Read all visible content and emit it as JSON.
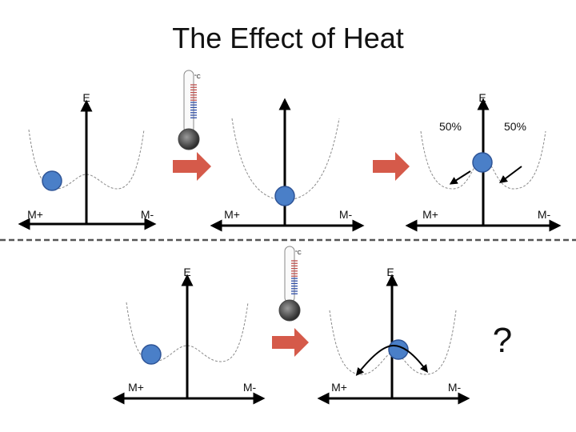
{
  "title": "The Effect of Heat",
  "colors": {
    "ball_fill": "#4a7fc8",
    "ball_stroke": "#2f5597",
    "arrow_fill": "#d55a4a",
    "curve": "#8a8a8a",
    "axis": "#000000",
    "divider": "#555555",
    "thermo_cold_ticks": "#2f4ea8",
    "thermo_hot_ticks": "#c0504d"
  },
  "thermometer": {
    "unit": "°C"
  },
  "panels": [
    {
      "e_label": "E",
      "left_label": "M+",
      "right_label": "M-"
    },
    {
      "e_label": "",
      "left_label": "M+",
      "right_label": "M-"
    },
    {
      "e_label": "E",
      "left_label": "M+",
      "right_label": "M-",
      "pct_left": "50%",
      "pct_right": "50%"
    },
    {
      "e_label": "E",
      "left_label": "M+",
      "right_label": "M-"
    },
    {
      "e_label": "E",
      "left_label": "M+",
      "right_label": "M-",
      "question": "?"
    }
  ]
}
